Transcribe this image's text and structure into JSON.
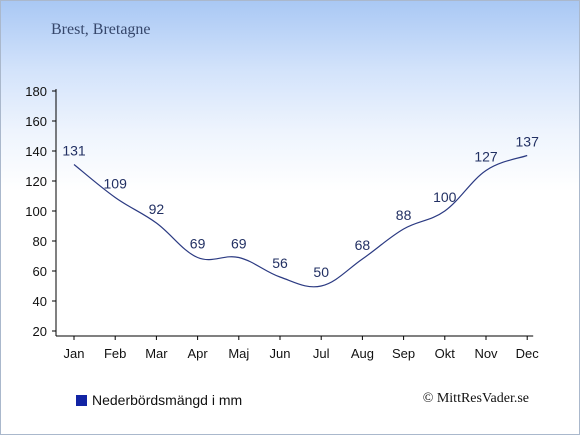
{
  "page": {
    "location": "Brest, Bretagne",
    "legend_label": "Nederbördsmängd i mm",
    "credit": "© MittResVader.se"
  },
  "colors": {
    "line": "#2b3a82",
    "legend_swatch": "#1224a4",
    "data_label": "#223063",
    "axis": "#000000"
  },
  "chart_data": {
    "type": "line",
    "categories": [
      "Jan",
      "Feb",
      "Mar",
      "Apr",
      "Maj",
      "Jun",
      "Jul",
      "Aug",
      "Sep",
      "Okt",
      "Nov",
      "Dec"
    ],
    "series": [
      {
        "name": "Nederbördsmängd i mm",
        "values": [
          131,
          109,
          92,
          69,
          69,
          56,
          50,
          68,
          88,
          100,
          127,
          137
        ]
      }
    ],
    "yticks": [
      20,
      40,
      60,
      80,
      100,
      120,
      140,
      160,
      180
    ],
    "ylim": [
      20,
      180
    ],
    "grid": false,
    "legend": "bottom-left"
  }
}
